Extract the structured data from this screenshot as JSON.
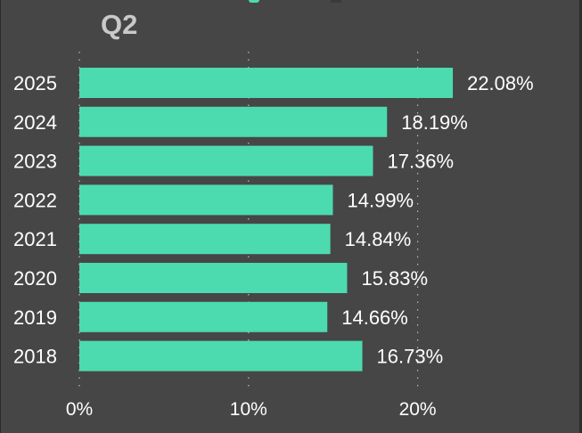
{
  "colors": {
    "background": "#464646",
    "bar": "#4cdbae",
    "text": "#ffffff",
    "title": "#c9c9c9",
    "grid": "#bdbdbd"
  },
  "chart_data": {
    "type": "bar",
    "orientation": "horizontal",
    "title": "Q2",
    "xlabel": "",
    "ylabel": "",
    "categories": [
      "2025",
      "2024",
      "2023",
      "2022",
      "2021",
      "2020",
      "2019",
      "2018"
    ],
    "values": [
      22.08,
      18.19,
      17.36,
      14.99,
      14.84,
      15.83,
      14.66,
      16.73
    ],
    "value_labels": [
      "22.08%",
      "18.19%",
      "17.36%",
      "14.99%",
      "14.84%",
      "15.83%",
      "14.66%",
      "16.73%"
    ],
    "xlim": [
      0,
      22.08
    ],
    "x_ticks": [
      0,
      10,
      20
    ],
    "x_tick_labels": [
      "0%",
      "10%",
      "20%"
    ],
    "grid": "vertical dotted",
    "legend": "none"
  }
}
